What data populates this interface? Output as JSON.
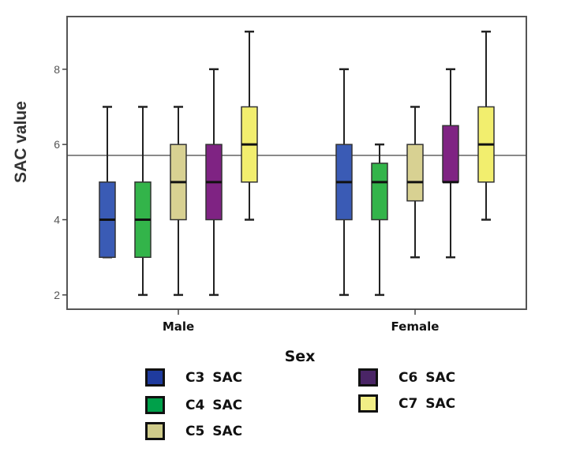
{
  "chart_data": {
    "type": "boxplot",
    "title": "",
    "xlabel": "Sex",
    "ylabel": "SAC value",
    "ylim": [
      1.62,
      9.4
    ],
    "yticks": [
      2,
      4,
      6,
      8
    ],
    "grid": false,
    "reference_line": 5.71,
    "categories": [
      "Male",
      "Female"
    ],
    "series": [
      {
        "name": "C3 SAC",
        "color": "#3a5bb5",
        "legend_color": "#1f3b9e",
        "values": [
          {
            "min": 3,
            "q1": 3,
            "median": 4,
            "q3": 5,
            "max": 7
          },
          {
            "min": 2,
            "q1": 4,
            "median": 5,
            "q3": 6,
            "max": 8
          }
        ]
      },
      {
        "name": "C4 SAC",
        "color": "#33b44a",
        "legend_color": "#00a04a",
        "values": [
          {
            "min": 2,
            "q1": 3,
            "median": 4,
            "q3": 5,
            "max": 7
          },
          {
            "min": 2,
            "q1": 4,
            "median": 5,
            "q3": 5.5,
            "max": 6
          }
        ]
      },
      {
        "name": "C5 SAC",
        "color": "#d8d192",
        "legend_color": "#cfcb8a",
        "values": [
          {
            "min": 2,
            "q1": 4,
            "median": 5,
            "q3": 6,
            "max": 7
          },
          {
            "min": 3,
            "q1": 4.5,
            "median": 5,
            "q3": 6,
            "max": 7
          }
        ]
      },
      {
        "name": "C6 SAC",
        "color": "#7f2383",
        "legend_color": "#4a2566",
        "values": [
          {
            "min": 2,
            "q1": 4,
            "median": 5,
            "q3": 6,
            "max": 8
          },
          {
            "min": 3,
            "q1": 5,
            "median": 5,
            "q3": 6.5,
            "max": 8
          }
        ]
      },
      {
        "name": "C7 SAC",
        "color": "#f2ee6e",
        "legend_color": "#f2ee86",
        "values": [
          {
            "min": 4,
            "q1": 5,
            "median": 6,
            "q3": 7,
            "max": 9
          },
          {
            "min": 4,
            "q1": 5,
            "median": 6,
            "q3": 7,
            "max": 9
          }
        ]
      }
    ],
    "legend_position": "bottom"
  }
}
